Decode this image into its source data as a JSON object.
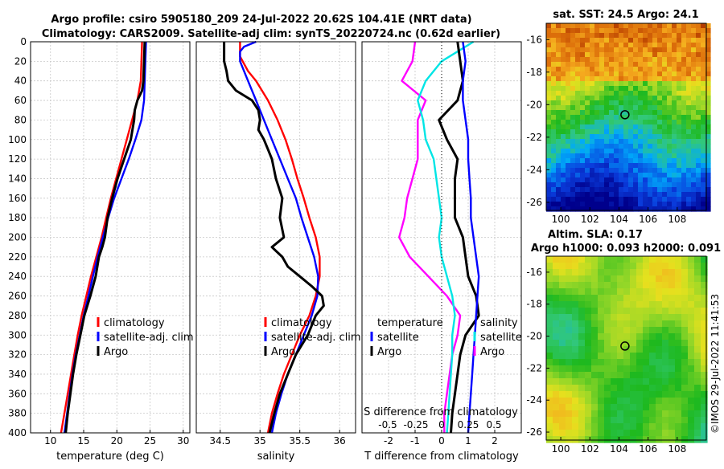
{
  "title": {
    "line1": "Argo profile: csiro 5905180_209 24-Jul-2022 20.62S 104.41E (NRT data)",
    "line2": "Climatology: CARS2009. Satellite-adj clim: synTS_20220724.nc (0.62d earlier)"
  },
  "colors": {
    "climatology": "#ff0000",
    "satellite": "#0000ff",
    "argo": "#000000",
    "temp_diff": "#ff00ff",
    "sal_diff": "#00e5e5",
    "frame": "#000000"
  },
  "chart_data": [
    {
      "type": "line",
      "id": "temperature",
      "xlabel": "temperature (deg C)",
      "ylabel": "",
      "xlim": [
        7,
        31
      ],
      "ylim": [
        400,
        0
      ],
      "xticks": [
        10,
        15,
        20,
        25,
        30
      ],
      "yticks": [
        0,
        20,
        40,
        60,
        80,
        100,
        120,
        140,
        160,
        180,
        200,
        220,
        240,
        260,
        280,
        300,
        320,
        340,
        360,
        380,
        400
      ],
      "legend": [
        "climatology",
        "satellite-adj. clim",
        "Argo"
      ],
      "series": [
        {
          "name": "climatology",
          "color": "#ff0000",
          "y": [
            0,
            20,
            40,
            60,
            80,
            100,
            120,
            140,
            160,
            180,
            200,
            220,
            240,
            260,
            280,
            300,
            320,
            340,
            360,
            380,
            400
          ],
          "x": [
            23.8,
            23.7,
            23.6,
            23.1,
            22.3,
            21.5,
            20.7,
            19.9,
            19.1,
            18.4,
            17.7,
            16.9,
            16.1,
            15.4,
            14.7,
            14.1,
            13.6,
            13.1,
            12.6,
            12.1,
            11.6
          ]
        },
        {
          "name": "satellite-adj. clim",
          "color": "#0000ff",
          "y": [
            0,
            20,
            40,
            60,
            80,
            100,
            120,
            140,
            160,
            180,
            200,
            220,
            240,
            260,
            280,
            300,
            320,
            340,
            360,
            380,
            400
          ],
          "x": [
            24.4,
            24.3,
            24.2,
            24.1,
            23.7,
            22.8,
            21.8,
            20.7,
            19.6,
            18.7,
            17.9,
            17.1,
            16.4,
            15.7,
            15.0,
            14.4,
            13.8,
            13.3,
            12.9,
            12.5,
            12.1
          ]
        },
        {
          "name": "Argo",
          "color": "#000000",
          "y": [
            0,
            20,
            40,
            50,
            60,
            70,
            80,
            100,
            120,
            140,
            160,
            180,
            200,
            210,
            220,
            240,
            260,
            280,
            300,
            320,
            340,
            360,
            380,
            400
          ],
          "x": [
            24.2,
            24.1,
            24.0,
            23.8,
            23.1,
            22.7,
            22.6,
            22.1,
            21.1,
            20.1,
            19.3,
            18.6,
            18.2,
            17.8,
            17.3,
            16.8,
            16.0,
            15.1,
            14.5,
            13.9,
            13.4,
            13.0,
            12.6,
            12.3
          ]
        }
      ]
    },
    {
      "type": "line",
      "id": "salinity",
      "xlabel": "salinity",
      "ylabel": "",
      "xlim": [
        34.2,
        36.2
      ],
      "ylim": [
        400,
        0
      ],
      "xticks": [
        34.5,
        35,
        35.5,
        36
      ],
      "yticks": [
        0,
        20,
        40,
        60,
        80,
        100,
        120,
        140,
        160,
        180,
        200,
        220,
        240,
        260,
        280,
        300,
        320,
        340,
        360,
        380,
        400
      ],
      "legend": [
        "climatology",
        "satellite-adj. clim",
        "Argo"
      ],
      "series": [
        {
          "name": "climatology",
          "color": "#ff0000",
          "y": [
            0,
            15,
            30,
            40,
            60,
            80,
            100,
            120,
            140,
            160,
            180,
            200,
            220,
            240,
            260,
            280,
            300,
            320,
            340,
            360,
            380,
            400
          ],
          "x": [
            34.75,
            34.75,
            34.85,
            34.95,
            35.1,
            35.22,
            35.32,
            35.4,
            35.47,
            35.55,
            35.62,
            35.7,
            35.75,
            35.75,
            35.7,
            35.62,
            35.5,
            35.4,
            35.3,
            35.22,
            35.15,
            35.1
          ]
        },
        {
          "name": "satellite-adj. clim",
          "color": "#0000ff",
          "y": [
            0,
            5,
            10,
            20,
            40,
            60,
            80,
            100,
            120,
            140,
            160,
            180,
            200,
            220,
            240,
            260,
            280,
            300,
            320,
            340,
            360,
            380,
            400
          ],
          "x": [
            34.95,
            34.8,
            34.75,
            34.75,
            34.85,
            34.95,
            35.05,
            35.15,
            35.25,
            35.35,
            35.45,
            35.52,
            35.6,
            35.68,
            35.73,
            35.72,
            35.65,
            35.55,
            35.45,
            35.35,
            35.27,
            35.2,
            35.15
          ]
        },
        {
          "name": "Argo",
          "color": "#000000",
          "y": [
            0,
            20,
            30,
            40,
            50,
            60,
            70,
            80,
            90,
            100,
            110,
            120,
            140,
            160,
            180,
            200,
            210,
            220,
            230,
            240,
            250,
            260,
            270,
            280,
            300,
            320,
            340,
            360,
            380,
            400
          ],
          "x": [
            34.55,
            34.55,
            34.58,
            34.6,
            34.7,
            34.9,
            34.98,
            35.0,
            34.98,
            35.05,
            35.1,
            35.15,
            35.2,
            35.28,
            35.25,
            35.3,
            35.15,
            35.28,
            35.35,
            35.5,
            35.65,
            35.78,
            35.8,
            35.7,
            35.6,
            35.45,
            35.35,
            35.25,
            35.18,
            35.12
          ]
        }
      ]
    },
    {
      "type": "line",
      "id": "difference",
      "xlabel": "T difference from climatology",
      "ylabel": "",
      "xlim": [
        -3,
        3
      ],
      "ylim": [
        400,
        0
      ],
      "xticks": [
        -2,
        -1,
        0,
        1,
        2
      ],
      "secondary_xlabel": "S difference from climatology",
      "secondary_xticks": [
        "-0.5",
        "-0.25",
        "0",
        "0.25",
        "0.5"
      ],
      "yticks": [
        0,
        20,
        40,
        60,
        80,
        100,
        120,
        140,
        160,
        180,
        200,
        220,
        240,
        260,
        280,
        300,
        320,
        340,
        360,
        380,
        400
      ],
      "legend_left": [
        "temperature",
        "satellite",
        "Argo"
      ],
      "legend_right": [
        "salinity",
        "satellite",
        "Argo"
      ],
      "series": [
        {
          "name": "T satellite",
          "color": "#ff00ff",
          "y": [
            0,
            20,
            40,
            60,
            80,
            100,
            120,
            140,
            160,
            180,
            200,
            220,
            240,
            260,
            280,
            300,
            320,
            340,
            360,
            380,
            400
          ],
          "x": [
            -1.0,
            -1.1,
            -1.5,
            -0.6,
            -0.9,
            -0.9,
            -0.9,
            -1.1,
            -1.3,
            -1.4,
            -1.6,
            -1.2,
            -0.5,
            0.2,
            0.7,
            0.6,
            0.4,
            0.3,
            0.2,
            0.1,
            0.1
          ]
        },
        {
          "name": "S satellite",
          "color": "#00e5e5",
          "y": [
            0,
            20,
            40,
            60,
            80,
            100,
            120,
            140,
            160,
            180,
            200,
            220,
            240,
            260,
            280,
            300,
            320,
            340,
            360,
            380,
            400
          ],
          "x": [
            1.2,
            0.0,
            -0.6,
            -0.9,
            -0.7,
            -0.6,
            -0.3,
            -0.2,
            -0.1,
            0.0,
            -0.1,
            0.0,
            0.2,
            0.4,
            0.5,
            0.4,
            0.4,
            0.35,
            0.3,
            0.25,
            0.2
          ]
        },
        {
          "name": "T Argo",
          "color": "#000000",
          "y": [
            0,
            20,
            40,
            60,
            80,
            100,
            120,
            140,
            160,
            180,
            200,
            220,
            240,
            260,
            280,
            300,
            320,
            340,
            360,
            380,
            400
          ],
          "x": [
            0.6,
            0.7,
            0.8,
            0.6,
            -0.1,
            0.2,
            0.6,
            0.5,
            0.5,
            0.5,
            0.8,
            0.9,
            1.0,
            1.3,
            1.4,
            0.9,
            0.7,
            0.6,
            0.5,
            0.4,
            0.35
          ]
        },
        {
          "name": "S Argo",
          "color": "#0000ff",
          "y": [
            0,
            20,
            40,
            60,
            80,
            100,
            120,
            140,
            160,
            180,
            200,
            220,
            240,
            260,
            280,
            300,
            320,
            340,
            360,
            380,
            400
          ],
          "x": [
            0.8,
            0.9,
            0.8,
            0.8,
            0.9,
            1.0,
            1.0,
            1.05,
            1.1,
            1.1,
            1.2,
            1.3,
            1.4,
            1.35,
            1.3,
            1.25,
            1.2,
            1.15,
            1.1,
            1.05,
            1.0
          ]
        }
      ]
    },
    {
      "type": "heatmap",
      "id": "sst_map",
      "title": "sat. SST: 24.5 Argo: 24.1",
      "xticks": [
        100,
        102,
        104,
        106,
        108
      ],
      "yticks": [
        -16,
        -18,
        -20,
        -22,
        -24,
        -26
      ],
      "xlim": [
        99,
        110
      ],
      "ylim": [
        -26.5,
        -15
      ],
      "argo_position": {
        "lon": 104.41,
        "lat": -20.62
      }
    },
    {
      "type": "heatmap",
      "id": "sla_map",
      "title1": "Altim. SLA: 0.17",
      "title2": "Argo h1000: 0.093 h2000: 0.091",
      "xticks": [
        100,
        102,
        104,
        106,
        108
      ],
      "yticks": [
        -16,
        -18,
        -20,
        -22,
        -24,
        -26
      ],
      "xlim": [
        99,
        110
      ],
      "ylim": [
        -26.5,
        -15
      ],
      "argo_position": {
        "lon": 104.41,
        "lat": -20.62
      }
    }
  ],
  "watermark": "©IMOS 29-Jul-2022 11:41:53"
}
